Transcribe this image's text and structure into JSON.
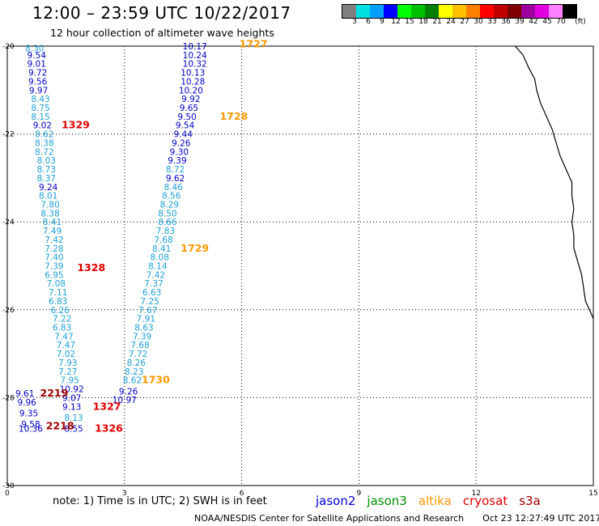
{
  "header": {
    "title": "12:00 – 23:59 UTC 10/22/2017",
    "subtitle": "12 hour collection of altimeter wave heights"
  },
  "legend": {
    "unit": "(ft)",
    "bins": [
      {
        "label": "3",
        "color": "#808080"
      },
      {
        "label": "6",
        "color": "#00e0e0"
      },
      {
        "label": "9",
        "color": "#00a0ff"
      },
      {
        "label": "12",
        "color": "#0000ff"
      },
      {
        "label": "15",
        "color": "#00ff00"
      },
      {
        "label": "18",
        "color": "#00c000"
      },
      {
        "label": "21",
        "color": "#008000"
      },
      {
        "label": "24",
        "color": "#ffff00"
      },
      {
        "label": "27",
        "color": "#ffc000"
      },
      {
        "label": "30",
        "color": "#ff8000"
      },
      {
        "label": "33",
        "color": "#ff0000"
      },
      {
        "label": "36",
        "color": "#c00000"
      },
      {
        "label": "39",
        "color": "#800000"
      },
      {
        "label": "42",
        "color": "#a000a0"
      },
      {
        "label": "45",
        "color": "#e000e0"
      },
      {
        "label": "70",
        "color": "#ff80ff"
      },
      {
        "label": "",
        "color": "#000000"
      }
    ]
  },
  "footer": {
    "note": "note: 1) Time is in UTC; 2) SWH is in feet",
    "satellites": [
      {
        "name": "jason2",
        "color": "#0000e0"
      },
      {
        "name": "jason3",
        "color": "#009000"
      },
      {
        "name": "altika",
        "color": "#ff9900"
      },
      {
        "name": "cryosat",
        "color": "#e00000"
      },
      {
        "name": "s3a",
        "color": "#a00000"
      }
    ],
    "credit": "NOAA/NESDIS Center for Satellite Applications and Research",
    "timestamp": "Oct 23 12:27:49 UTC 2017"
  },
  "colors": {
    "cyan": "#1ea0d8",
    "blue": "#0000c8",
    "orange": "#ff9900",
    "red": "#e00000",
    "darkred": "#a00000"
  },
  "chart_data": {
    "type": "scatter",
    "xlim": [
      0,
      15
    ],
    "ylim": [
      -30,
      -20
    ],
    "x_ticks": [
      0,
      3,
      6,
      9,
      12,
      15
    ],
    "y_ticks": [
      -30,
      -28,
      -26,
      -24,
      -22,
      -20
    ],
    "grid": true,
    "coastline": [
      [
        13.0,
        -20.0
      ],
      [
        13.2,
        -20.2
      ],
      [
        13.35,
        -20.5
      ],
      [
        13.5,
        -20.75
      ],
      [
        13.55,
        -21.0
      ],
      [
        13.65,
        -21.3
      ],
      [
        13.8,
        -21.6
      ],
      [
        13.95,
        -21.9
      ],
      [
        14.05,
        -22.2
      ],
      [
        14.15,
        -22.5
      ],
      [
        14.3,
        -22.8
      ],
      [
        14.45,
        -23.1
      ],
      [
        14.45,
        -23.4
      ],
      [
        14.5,
        -23.7
      ],
      [
        14.45,
        -24.0
      ],
      [
        14.5,
        -24.3
      ],
      [
        14.5,
        -24.6
      ],
      [
        14.6,
        -24.9
      ],
      [
        14.7,
        -25.2
      ],
      [
        14.75,
        -25.5
      ],
      [
        14.8,
        -25.8
      ],
      [
        14.9,
        -26.0
      ],
      [
        15.0,
        -26.2
      ]
    ],
    "series": [
      {
        "name": "jason2",
        "points": [
          {
            "x": 0.7,
            "y": -20.05,
            "v": "8.30",
            "c": "cyan"
          },
          {
            "x": 0.75,
            "y": -20.2,
            "v": "9.54",
            "c": "blue"
          },
          {
            "x": 0.75,
            "y": -20.4,
            "v": "9.01",
            "c": "blue"
          },
          {
            "x": 0.78,
            "y": -20.6,
            "v": "9.72",
            "c": "blue"
          },
          {
            "x": 0.78,
            "y": -20.8,
            "v": "9.56",
            "c": "blue"
          },
          {
            "x": 0.8,
            "y": -21.0,
            "v": "9.97",
            "c": "blue"
          },
          {
            "x": 0.85,
            "y": -21.2,
            "v": "8.43",
            "c": "cyan"
          },
          {
            "x": 0.85,
            "y": -21.4,
            "v": "8.75",
            "c": "cyan"
          },
          {
            "x": 0.85,
            "y": -21.6,
            "v": "8.15",
            "c": "cyan"
          },
          {
            "x": 0.9,
            "y": -21.8,
            "v": "9.02",
            "c": "blue"
          },
          {
            "x": 0.95,
            "y": -22.0,
            "v": "8.62",
            "c": "cyan"
          },
          {
            "x": 0.95,
            "y": -22.2,
            "v": "8.38",
            "c": "cyan"
          },
          {
            "x": 0.95,
            "y": -22.4,
            "v": "8.72",
            "c": "cyan"
          },
          {
            "x": 1.0,
            "y": -22.6,
            "v": "8.03",
            "c": "cyan"
          },
          {
            "x": 1.0,
            "y": -22.8,
            "v": "8.73",
            "c": "cyan"
          },
          {
            "x": 1.0,
            "y": -23.0,
            "v": "8.37",
            "c": "cyan"
          },
          {
            "x": 1.05,
            "y": -23.2,
            "v": "9.24",
            "c": "blue"
          },
          {
            "x": 1.05,
            "y": -23.4,
            "v": "8.01",
            "c": "cyan"
          },
          {
            "x": 1.1,
            "y": -23.6,
            "v": "7.80",
            "c": "cyan"
          },
          {
            "x": 1.1,
            "y": -23.8,
            "v": "8.38",
            "c": "cyan"
          },
          {
            "x": 1.15,
            "y": -24.0,
            "v": "8.41",
            "c": "cyan"
          },
          {
            "x": 1.15,
            "y": -24.2,
            "v": "7.49",
            "c": "cyan"
          },
          {
            "x": 1.2,
            "y": -24.4,
            "v": "7.42",
            "c": "cyan"
          },
          {
            "x": 1.2,
            "y": -24.6,
            "v": "7.28",
            "c": "cyan"
          },
          {
            "x": 1.2,
            "y": -24.8,
            "v": "7.40",
            "c": "cyan"
          },
          {
            "x": 1.2,
            "y": -25.0,
            "v": "7.39",
            "c": "cyan"
          },
          {
            "x": 1.2,
            "y": -25.2,
            "v": "6.95",
            "c": "cyan"
          },
          {
            "x": 1.25,
            "y": -25.4,
            "v": "7.08",
            "c": "cyan"
          },
          {
            "x": 1.3,
            "y": -25.6,
            "v": "7.11",
            "c": "cyan"
          },
          {
            "x": 1.3,
            "y": -25.8,
            "v": "6.83",
            "c": "cyan"
          },
          {
            "x": 1.35,
            "y": -26.0,
            "v": "6.26",
            "c": "cyan"
          },
          {
            "x": 1.4,
            "y": -26.2,
            "v": "7.22",
            "c": "cyan"
          },
          {
            "x": 1.4,
            "y": -26.4,
            "v": "6.83",
            "c": "cyan"
          },
          {
            "x": 1.45,
            "y": -26.6,
            "v": "7.47",
            "c": "cyan"
          },
          {
            "x": 1.5,
            "y": -26.8,
            "v": "7.47",
            "c": "cyan"
          },
          {
            "x": 1.5,
            "y": -27.0,
            "v": "7.02",
            "c": "cyan"
          },
          {
            "x": 1.55,
            "y": -27.2,
            "v": "7.93",
            "c": "cyan"
          },
          {
            "x": 1.55,
            "y": -27.4,
            "v": "7.27",
            "c": "cyan"
          },
          {
            "x": 1.6,
            "y": -27.6,
            "v": "7.95",
            "c": "cyan"
          },
          {
            "x": 1.65,
            "y": -27.8,
            "v": "10.92",
            "c": "blue"
          },
          {
            "x": 1.65,
            "y": -28.0,
            "v": "9.07",
            "c": "blue"
          },
          {
            "x": 1.65,
            "y": -28.2,
            "v": "9.13",
            "c": "blue"
          },
          {
            "x": 1.7,
            "y": -28.45,
            "v": "8.13",
            "c": "cyan"
          },
          {
            "x": 1.7,
            "y": -28.7,
            "v": "8.55",
            "c": "blue"
          }
        ]
      },
      {
        "name": "jason2",
        "points": [
          {
            "x": 4.8,
            "y": -20.0,
            "v": "10.17",
            "c": "blue"
          },
          {
            "x": 4.8,
            "y": -20.2,
            "v": "10.24",
            "c": "blue"
          },
          {
            "x": 4.8,
            "y": -20.4,
            "v": "10.32",
            "c": "blue"
          },
          {
            "x": 4.75,
            "y": -20.6,
            "v": "10.13",
            "c": "blue"
          },
          {
            "x": 4.75,
            "y": -20.8,
            "v": "10.28",
            "c": "blue"
          },
          {
            "x": 4.7,
            "y": -21.0,
            "v": "10.20",
            "c": "blue"
          },
          {
            "x": 4.7,
            "y": -21.2,
            "v": "9.92",
            "c": "blue"
          },
          {
            "x": 4.65,
            "y": -21.4,
            "v": "9.65",
            "c": "blue"
          },
          {
            "x": 4.6,
            "y": -21.6,
            "v": "9.50",
            "c": "blue"
          },
          {
            "x": 4.55,
            "y": -21.8,
            "v": "9.54",
            "c": "blue"
          },
          {
            "x": 4.5,
            "y": -22.0,
            "v": "9.44",
            "c": "blue"
          },
          {
            "x": 4.45,
            "y": -22.2,
            "v": "9.26",
            "c": "blue"
          },
          {
            "x": 4.4,
            "y": -22.4,
            "v": "9.30",
            "c": "blue"
          },
          {
            "x": 4.35,
            "y": -22.6,
            "v": "9.39",
            "c": "blue"
          },
          {
            "x": 4.3,
            "y": -22.8,
            "v": "8.72",
            "c": "cyan"
          },
          {
            "x": 4.3,
            "y": -23.0,
            "v": "9.62",
            "c": "blue"
          },
          {
            "x": 4.25,
            "y": -23.2,
            "v": "8.46",
            "c": "cyan"
          },
          {
            "x": 4.2,
            "y": -23.4,
            "v": "8.56",
            "c": "cyan"
          },
          {
            "x": 4.15,
            "y": -23.6,
            "v": "8.29",
            "c": "cyan"
          },
          {
            "x": 4.1,
            "y": -23.8,
            "v": "8.50",
            "c": "cyan"
          },
          {
            "x": 4.1,
            "y": -24.0,
            "v": "8.66",
            "c": "cyan"
          },
          {
            "x": 4.05,
            "y": -24.2,
            "v": "7.83",
            "c": "cyan"
          },
          {
            "x": 4.0,
            "y": -24.4,
            "v": "7.68",
            "c": "cyan"
          },
          {
            "x": 3.95,
            "y": -24.6,
            "v": "8.41",
            "c": "cyan"
          },
          {
            "x": 3.9,
            "y": -24.8,
            "v": "8.08",
            "c": "cyan"
          },
          {
            "x": 3.85,
            "y": -25.0,
            "v": "8.14",
            "c": "cyan"
          },
          {
            "x": 3.8,
            "y": -25.2,
            "v": "7.42",
            "c": "cyan"
          },
          {
            "x": 3.75,
            "y": -25.4,
            "v": "7.37",
            "c": "cyan"
          },
          {
            "x": 3.7,
            "y": -25.6,
            "v": "6.63",
            "c": "cyan"
          },
          {
            "x": 3.65,
            "y": -25.8,
            "v": "7.25",
            "c": "cyan"
          },
          {
            "x": 3.6,
            "y": -26.0,
            "v": "7.67",
            "c": "cyan"
          },
          {
            "x": 3.55,
            "y": -26.2,
            "v": "7.91",
            "c": "cyan"
          },
          {
            "x": 3.5,
            "y": -26.4,
            "v": "8.63",
            "c": "cyan"
          },
          {
            "x": 3.45,
            "y": -26.6,
            "v": "7.39",
            "c": "cyan"
          },
          {
            "x": 3.4,
            "y": -26.8,
            "v": "7.68",
            "c": "cyan"
          },
          {
            "x": 3.35,
            "y": -27.0,
            "v": "7.72",
            "c": "cyan"
          },
          {
            "x": 3.3,
            "y": -27.2,
            "v": "8.26",
            "c": "cyan"
          },
          {
            "x": 3.25,
            "y": -27.4,
            "v": "8.23",
            "c": "cyan"
          },
          {
            "x": 3.2,
            "y": -27.6,
            "v": "8.62",
            "c": "cyan"
          },
          {
            "x": 3.1,
            "y": -27.85,
            "v": "9.26",
            "c": "blue"
          },
          {
            "x": 3.0,
            "y": -28.05,
            "v": "10.97",
            "c": "blue"
          }
        ]
      },
      {
        "name": "jason2",
        "points": [
          {
            "x": 0.45,
            "y": -27.9,
            "v": "9.61",
            "c": "blue"
          },
          {
            "x": 0.5,
            "y": -28.1,
            "v": "9.96",
            "c": "blue"
          },
          {
            "x": 0.55,
            "y": -28.35,
            "v": "9.35",
            "c": "blue"
          },
          {
            "x": 0.6,
            "y": -28.6,
            "v": "9.58",
            "c": "blue"
          },
          {
            "x": 0.6,
            "y": -28.7,
            "v": "10.36",
            "c": "blue"
          }
        ]
      },
      {
        "name": "altika",
        "points": [
          {
            "x": 6.3,
            "y": -19.95,
            "v": "1727",
            "c": "orange"
          },
          {
            "x": 5.8,
            "y": -21.6,
            "v": "1728",
            "c": "orange"
          },
          {
            "x": 4.8,
            "y": -24.6,
            "v": "1729",
            "c": "orange"
          },
          {
            "x": 3.8,
            "y": -27.6,
            "v": "1730",
            "c": "orange"
          }
        ]
      },
      {
        "name": "cryosat",
        "points": [
          {
            "x": 1.75,
            "y": -21.8,
            "v": "1329",
            "c": "red"
          },
          {
            "x": 2.15,
            "y": -25.05,
            "v": "1328",
            "c": "red"
          },
          {
            "x": 2.55,
            "y": -28.2,
            "v": "1327",
            "c": "red"
          },
          {
            "x": 2.6,
            "y": -28.7,
            "v": "1326",
            "c": "red"
          }
        ]
      },
      {
        "name": "s3a",
        "points": [
          {
            "x": 1.2,
            "y": -27.9,
            "v": "2219",
            "c": "darkred"
          },
          {
            "x": 1.35,
            "y": -28.65,
            "v": "2218",
            "c": "darkred"
          }
        ]
      }
    ]
  }
}
